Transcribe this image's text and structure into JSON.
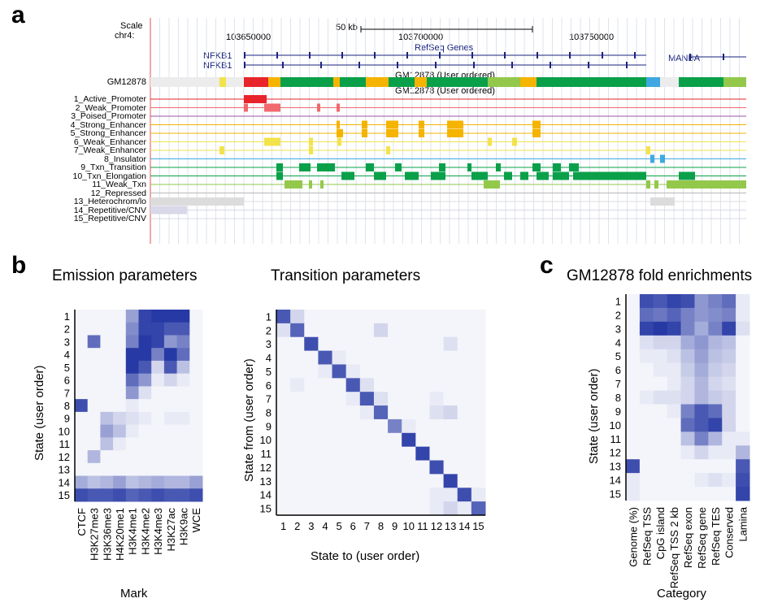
{
  "panels": {
    "a": "a",
    "b": "b",
    "c": "c"
  },
  "browser": {
    "scale_label": "Scale",
    "chrom_label": "chr4:",
    "scale_bar": "50 kb",
    "positions": [
      "103650000",
      "103700000",
      "103750000"
    ],
    "refseq_label": "RefSeq Genes",
    "genes": [
      "NFKB1",
      "NFKB1",
      "MANBA"
    ],
    "track_name": "GM12878",
    "track_caption_1": "GM12878 (User ordered)",
    "track_caption_2": "GM12878 (User ordered)",
    "states": [
      {
        "label": "1_Active_Promoter",
        "color": "#e8252a"
      },
      {
        "label": "2_Weak_Promoter",
        "color": "#f06a6e"
      },
      {
        "label": "3_Poised_Promoter",
        "color": "#9b4fa8"
      },
      {
        "label": "4_Strong_Enhancer",
        "color": "#f4b400"
      },
      {
        "label": "5_Strong_Enhancer",
        "color": "#f4b400"
      },
      {
        "label": "6_Weak_Enhancer",
        "color": "#f3e34a"
      },
      {
        "label": "7_Weak_Enhancer",
        "color": "#f3e34a"
      },
      {
        "label": "8_Insulator",
        "color": "#3fa8e0"
      },
      {
        "label": "9_Txn_Transition",
        "color": "#0aa04a"
      },
      {
        "label": "10_Txn_Elongation",
        "color": "#0aa04a"
      },
      {
        "label": "11_Weak_Txn",
        "color": "#93c84b"
      },
      {
        "label": "12_Repressed",
        "color": "#b9b9b9"
      },
      {
        "label": "13_Heterochrom/lo",
        "color": "#dcdcdc"
      },
      {
        "label": "14_Repetitive/CNV",
        "color": "#d8d8e8"
      },
      {
        "label": "15_Repetitive/CNV",
        "color": "#d8d8e8"
      }
    ]
  },
  "emission": {
    "title": "Emission parameters",
    "ylabel": "State (user order)",
    "xlabel": "Mark",
    "rows": [
      "1",
      "2",
      "3",
      "4",
      "5",
      "6",
      "7",
      "8",
      "9",
      "10",
      "11",
      "12",
      "13",
      "14",
      "15"
    ],
    "cols": [
      "CTCF",
      "H3K27me3",
      "H3K36me3",
      "H4K20me1",
      "H3K4me1",
      "H3K4me2",
      "H3K4me3",
      "H3K27ac",
      "H3K9ac",
      "WCE"
    ]
  },
  "transition": {
    "title": "Transition parameters",
    "ylabel": "State from (user order)",
    "xlabel": "State to (user order)",
    "rows": [
      "1",
      "2",
      "3",
      "4",
      "5",
      "6",
      "7",
      "8",
      "9",
      "10",
      "11",
      "12",
      "13",
      "14",
      "15"
    ],
    "cols": [
      "1",
      "2",
      "3",
      "4",
      "5",
      "6",
      "7",
      "8",
      "9",
      "10",
      "11",
      "12",
      "13",
      "14",
      "15"
    ]
  },
  "enrichment": {
    "title": "GM12878 fold enrichments",
    "ylabel": "State (user order)",
    "xlabel": "Category",
    "rows": [
      "1",
      "2",
      "3",
      "4",
      "5",
      "6",
      "7",
      "8",
      "9",
      "10",
      "11",
      "12",
      "13",
      "14",
      "15"
    ],
    "cols": [
      "Genome (%)",
      "RefSeq TSS",
      "CpG island",
      "RefSeq TSS 2 kb",
      "RefSeq exon",
      "RefSeq gene",
      "RefSeq TES",
      "Conserved",
      "Lamina"
    ]
  },
  "chart_data": [
    {
      "type": "heatmap",
      "title": "Emission parameters",
      "xlabel": "Mark",
      "ylabel": "State (user order)",
      "x": [
        "CTCF",
        "H3K27me3",
        "H3K36me3",
        "H4K20me1",
        "H3K4me1",
        "H3K4me2",
        "H3K4me3",
        "H3K27ac",
        "H3K9ac",
        "WCE"
      ],
      "y": [
        "1",
        "2",
        "3",
        "4",
        "5",
        "6",
        "7",
        "8",
        "9",
        "10",
        "11",
        "12",
        "13",
        "14",
        "15"
      ],
      "values": [
        [
          0.05,
          0.05,
          0.05,
          0.05,
          0.45,
          0.9,
          0.95,
          0.95,
          0.95,
          0.05
        ],
        [
          0.05,
          0.05,
          0.05,
          0.05,
          0.55,
          0.9,
          0.9,
          0.8,
          0.8,
          0.05
        ],
        [
          0.05,
          0.7,
          0.05,
          0.05,
          0.6,
          0.95,
          0.9,
          0.5,
          0.6,
          0.05
        ],
        [
          0.05,
          0.05,
          0.05,
          0.05,
          0.95,
          0.95,
          0.6,
          0.95,
          0.7,
          0.05
        ],
        [
          0.05,
          0.05,
          0.05,
          0.05,
          0.95,
          0.8,
          0.2,
          0.8,
          0.3,
          0.05
        ],
        [
          0.05,
          0.05,
          0.05,
          0.05,
          0.7,
          0.5,
          0.1,
          0.2,
          0.1,
          0.05
        ],
        [
          0.05,
          0.05,
          0.05,
          0.05,
          0.5,
          0.15,
          0.05,
          0.05,
          0.05,
          0.05
        ],
        [
          0.85,
          0.05,
          0.05,
          0.05,
          0.1,
          0.05,
          0.05,
          0.05,
          0.05,
          0.05
        ],
        [
          0.05,
          0.05,
          0.3,
          0.2,
          0.15,
          0.1,
          0.05,
          0.1,
          0.1,
          0.05
        ],
        [
          0.05,
          0.05,
          0.45,
          0.3,
          0.1,
          0.05,
          0.05,
          0.05,
          0.05,
          0.05
        ],
        [
          0.05,
          0.05,
          0.3,
          0.1,
          0.05,
          0.05,
          0.05,
          0.05,
          0.05,
          0.05
        ],
        [
          0.05,
          0.35,
          0.05,
          0.05,
          0.05,
          0.05,
          0.05,
          0.05,
          0.05,
          0.05
        ],
        [
          0.05,
          0.05,
          0.05,
          0.05,
          0.05,
          0.05,
          0.05,
          0.05,
          0.05,
          0.05
        ],
        [
          0.4,
          0.3,
          0.35,
          0.45,
          0.3,
          0.35,
          0.4,
          0.35,
          0.35,
          0.45
        ],
        [
          0.85,
          0.8,
          0.8,
          0.85,
          0.75,
          0.8,
          0.85,
          0.8,
          0.8,
          0.85
        ]
      ]
    },
    {
      "type": "heatmap",
      "title": "Transition parameters",
      "xlabel": "State to (user order)",
      "ylabel": "State from (user order)",
      "x": [
        "1",
        "2",
        "3",
        "4",
        "5",
        "6",
        "7",
        "8",
        "9",
        "10",
        "11",
        "12",
        "13",
        "14",
        "15"
      ],
      "y": [
        "1",
        "2",
        "3",
        "4",
        "5",
        "6",
        "7",
        "8",
        "9",
        "10",
        "11",
        "12",
        "13",
        "14",
        "15"
      ],
      "values": [
        [
          0.8,
          0.2,
          0.05,
          0.05,
          0.05,
          0.05,
          0.05,
          0.05,
          0.05,
          0.05,
          0.05,
          0.05,
          0.05,
          0.05,
          0.05
        ],
        [
          0.15,
          0.75,
          0.05,
          0.05,
          0.05,
          0.05,
          0.05,
          0.2,
          0.05,
          0.05,
          0.05,
          0.05,
          0.05,
          0.05,
          0.05
        ],
        [
          0.05,
          0.05,
          0.85,
          0.05,
          0.05,
          0.05,
          0.05,
          0.05,
          0.05,
          0.05,
          0.05,
          0.05,
          0.15,
          0.05,
          0.05
        ],
        [
          0.05,
          0.05,
          0.05,
          0.8,
          0.1,
          0.05,
          0.05,
          0.05,
          0.05,
          0.05,
          0.05,
          0.05,
          0.05,
          0.05,
          0.05
        ],
        [
          0.05,
          0.05,
          0.05,
          0.1,
          0.8,
          0.1,
          0.05,
          0.05,
          0.05,
          0.05,
          0.05,
          0.05,
          0.05,
          0.05,
          0.05
        ],
        [
          0.05,
          0.1,
          0.05,
          0.05,
          0.05,
          0.8,
          0.15,
          0.05,
          0.05,
          0.05,
          0.05,
          0.05,
          0.05,
          0.05,
          0.05
        ],
        [
          0.05,
          0.05,
          0.05,
          0.05,
          0.05,
          0.1,
          0.8,
          0.15,
          0.05,
          0.05,
          0.05,
          0.1,
          0.05,
          0.05,
          0.05
        ],
        [
          0.05,
          0.05,
          0.05,
          0.05,
          0.05,
          0.05,
          0.1,
          0.75,
          0.05,
          0.05,
          0.05,
          0.15,
          0.2,
          0.05,
          0.05
        ],
        [
          0.05,
          0.05,
          0.05,
          0.05,
          0.05,
          0.05,
          0.05,
          0.05,
          0.6,
          0.1,
          0.05,
          0.05,
          0.05,
          0.05,
          0.05
        ],
        [
          0.05,
          0.05,
          0.05,
          0.05,
          0.05,
          0.05,
          0.05,
          0.05,
          0.05,
          0.9,
          0.05,
          0.05,
          0.05,
          0.05,
          0.05
        ],
        [
          0.05,
          0.05,
          0.05,
          0.05,
          0.05,
          0.05,
          0.05,
          0.05,
          0.05,
          0.05,
          0.9,
          0.05,
          0.05,
          0.05,
          0.05
        ],
        [
          0.05,
          0.05,
          0.05,
          0.05,
          0.05,
          0.05,
          0.05,
          0.05,
          0.05,
          0.05,
          0.05,
          0.85,
          0.05,
          0.05,
          0.05
        ],
        [
          0.05,
          0.05,
          0.05,
          0.05,
          0.05,
          0.05,
          0.05,
          0.05,
          0.05,
          0.05,
          0.05,
          0.05,
          0.9,
          0.05,
          0.05
        ],
        [
          0.05,
          0.05,
          0.05,
          0.05,
          0.05,
          0.05,
          0.05,
          0.05,
          0.05,
          0.05,
          0.05,
          0.1,
          0.1,
          0.85,
          0.1
        ],
        [
          0.05,
          0.05,
          0.05,
          0.05,
          0.05,
          0.05,
          0.05,
          0.05,
          0.05,
          0.05,
          0.05,
          0.1,
          0.2,
          0.1,
          0.75
        ]
      ]
    },
    {
      "type": "heatmap",
      "title": "GM12878 fold enrichments",
      "xlabel": "Category",
      "ylabel": "State (user order)",
      "x": [
        "Genome (%)",
        "RefSeq TSS",
        "CpG island",
        "RefSeq TSS 2 kb",
        "RefSeq exon",
        "RefSeq gene",
        "RefSeq TES",
        "Conserved",
        "Lamina"
      ],
      "y": [
        "1",
        "2",
        "3",
        "4",
        "5",
        "6",
        "7",
        "8",
        "9",
        "10",
        "11",
        "12",
        "13",
        "14",
        "15"
      ],
      "values": [
        [
          0.05,
          0.85,
          0.8,
          0.9,
          0.85,
          0.5,
          0.6,
          0.7,
          0.1
        ],
        [
          0.05,
          0.7,
          0.65,
          0.75,
          0.6,
          0.5,
          0.55,
          0.6,
          0.1
        ],
        [
          0.05,
          0.9,
          0.95,
          0.9,
          0.6,
          0.4,
          0.6,
          0.9,
          0.15
        ],
        [
          0.05,
          0.15,
          0.2,
          0.2,
          0.4,
          0.5,
          0.35,
          0.3,
          0.05
        ],
        [
          0.05,
          0.1,
          0.1,
          0.15,
          0.3,
          0.45,
          0.3,
          0.25,
          0.05
        ],
        [
          0.05,
          0.05,
          0.1,
          0.1,
          0.25,
          0.4,
          0.25,
          0.2,
          0.05
        ],
        [
          0.05,
          0.05,
          0.05,
          0.1,
          0.2,
          0.35,
          0.2,
          0.15,
          0.05
        ],
        [
          0.05,
          0.1,
          0.15,
          0.15,
          0.2,
          0.35,
          0.25,
          0.2,
          0.05
        ],
        [
          0.05,
          0.05,
          0.05,
          0.1,
          0.6,
          0.8,
          0.7,
          0.2,
          0.05
        ],
        [
          0.05,
          0.05,
          0.05,
          0.05,
          0.7,
          0.8,
          0.9,
          0.2,
          0.05
        ],
        [
          0.05,
          0.05,
          0.05,
          0.05,
          0.3,
          0.6,
          0.35,
          0.1,
          0.1
        ],
        [
          0.05,
          0.05,
          0.05,
          0.05,
          0.1,
          0.2,
          0.1,
          0.1,
          0.35
        ],
        [
          0.85,
          0.05,
          0.05,
          0.05,
          0.05,
          0.05,
          0.05,
          0.05,
          0.8
        ],
        [
          0.1,
          0.05,
          0.05,
          0.05,
          0.05,
          0.1,
          0.15,
          0.1,
          0.85
        ],
        [
          0.1,
          0.05,
          0.05,
          0.05,
          0.05,
          0.05,
          0.05,
          0.05,
          0.9
        ]
      ]
    }
  ]
}
